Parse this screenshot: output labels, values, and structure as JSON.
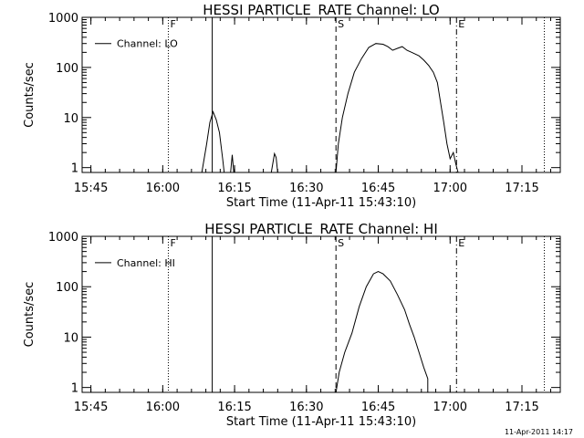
{
  "chart_data": [
    {
      "type": "line",
      "title": "HESSI PARTICLE_RATE Channel: LO",
      "xlabel": "Start Time (11-Apr-11 15:43:10)",
      "ylabel": "Counts/sec",
      "y_scale": "log",
      "ylim": [
        0.8,
        1000
      ],
      "xlim": [
        "15:43:10",
        "17:23:00"
      ],
      "x_ticks": [
        "15:45",
        "16:00",
        "16:15",
        "16:30",
        "16:45",
        "17:00",
        "17:15"
      ],
      "y_ticks": [
        "1",
        "10",
        "100",
        "1000"
      ],
      "legend": {
        "position": "top-left",
        "entries": [
          "Channel: LO"
        ]
      },
      "markers": [
        {
          "label": "F",
          "time": "16:01:10",
          "style": "dotted"
        },
        {
          "label": "",
          "time": "16:10:20",
          "style": "solid"
        },
        {
          "label": "S",
          "time": "16:36:10",
          "style": "dashed"
        },
        {
          "label": "E",
          "time": "17:01:20",
          "style": "dashdot"
        },
        {
          "label": "",
          "time": "17:19:40",
          "style": "dotted"
        }
      ],
      "series": [
        {
          "name": "Channel: LO",
          "segments": [
            [
              [
                "16:08:10",
                0.8
              ],
              [
                "16:09:10",
                3
              ],
              [
                "16:09:50",
                8
              ],
              [
                "16:10:30",
                13
              ],
              [
                "16:11:10",
                9
              ],
              [
                "16:11:50",
                5
              ],
              [
                "16:12:30",
                1.5
              ],
              [
                "16:12:50",
                0.8
              ]
            ],
            [
              [
                "16:14:10",
                0.8
              ],
              [
                "16:14:30",
                1.8
              ],
              [
                "16:14:50",
                0.8
              ]
            ],
            [
              [
                "16:22:40",
                0.8
              ],
              [
                "16:23:20",
                1.9
              ],
              [
                "16:23:40",
                1.6
              ],
              [
                "16:24:00",
                0.8
              ]
            ],
            [
              [
                "16:36:10",
                0.8
              ],
              [
                "16:36:40",
                3
              ],
              [
                "16:37:30",
                10
              ],
              [
                "16:38:40",
                30
              ],
              [
                "16:40:00",
                80
              ],
              [
                "16:41:30",
                150
              ],
              [
                "16:43:00",
                250
              ],
              [
                "16:44:30",
                300
              ],
              [
                "16:46:00",
                290
              ],
              [
                "16:47:00",
                260
              ],
              [
                "16:48:00",
                220
              ],
              [
                "16:49:00",
                240
              ],
              [
                "16:50:00",
                260
              ],
              [
                "16:51:00",
                220
              ],
              [
                "16:52:00",
                200
              ],
              [
                "16:53:30",
                170
              ],
              [
                "16:54:30",
                140
              ],
              [
                "16:55:30",
                110
              ],
              [
                "16:56:30",
                80
              ],
              [
                "16:57:20",
                50
              ],
              [
                "16:58:00",
                20
              ],
              [
                "16:58:40",
                8
              ],
              [
                "16:59:20",
                3
              ],
              [
                "17:00:00",
                1.5
              ],
              [
                "17:00:40",
                2
              ],
              [
                "17:01:10",
                1.2
              ],
              [
                "17:01:40",
                0.8
              ]
            ]
          ]
        }
      ]
    },
    {
      "type": "line",
      "title": "HESSI PARTICLE_RATE Channel: HI",
      "xlabel": "Start Time (11-Apr-11 15:43:10)",
      "ylabel": "Counts/sec",
      "y_scale": "log",
      "ylim": [
        0.8,
        1000
      ],
      "xlim": [
        "15:43:10",
        "17:23:00"
      ],
      "x_ticks": [
        "15:45",
        "16:00",
        "16:15",
        "16:30",
        "16:45",
        "17:00",
        "17:15"
      ],
      "y_ticks": [
        "1",
        "10",
        "100",
        "1000"
      ],
      "legend": {
        "position": "top-left",
        "entries": [
          "Channel: HI"
        ]
      },
      "markers": [
        {
          "label": "F",
          "time": "16:01:10",
          "style": "dotted"
        },
        {
          "label": "",
          "time": "16:10:20",
          "style": "solid"
        },
        {
          "label": "S",
          "time": "16:36:10",
          "style": "dashed"
        },
        {
          "label": "E",
          "time": "17:01:20",
          "style": "dashdot"
        },
        {
          "label": "",
          "time": "17:19:40",
          "style": "dotted"
        }
      ],
      "series": [
        {
          "name": "Channel: HI",
          "segments": [
            [
              [
                "16:36:10",
                0.8
              ],
              [
                "16:36:50",
                2
              ],
              [
                "16:38:00",
                5
              ],
              [
                "16:39:30",
                12
              ],
              [
                "16:41:00",
                40
              ],
              [
                "16:42:30",
                100
              ],
              [
                "16:44:00",
                180
              ],
              [
                "16:45:00",
                200
              ],
              [
                "16:46:00",
                180
              ],
              [
                "16:47:30",
                130
              ],
              [
                "16:49:00",
                70
              ],
              [
                "16:50:30",
                35
              ],
              [
                "16:51:30",
                18
              ],
              [
                "16:52:30",
                10
              ],
              [
                "16:53:30",
                5
              ],
              [
                "16:54:30",
                2.5
              ],
              [
                "16:55:20",
                1.5
              ],
              [
                "16:55:20",
                0.8
              ]
            ]
          ]
        }
      ]
    }
  ],
  "footer": {
    "timestamp": "11-Apr-2011 14:17"
  }
}
